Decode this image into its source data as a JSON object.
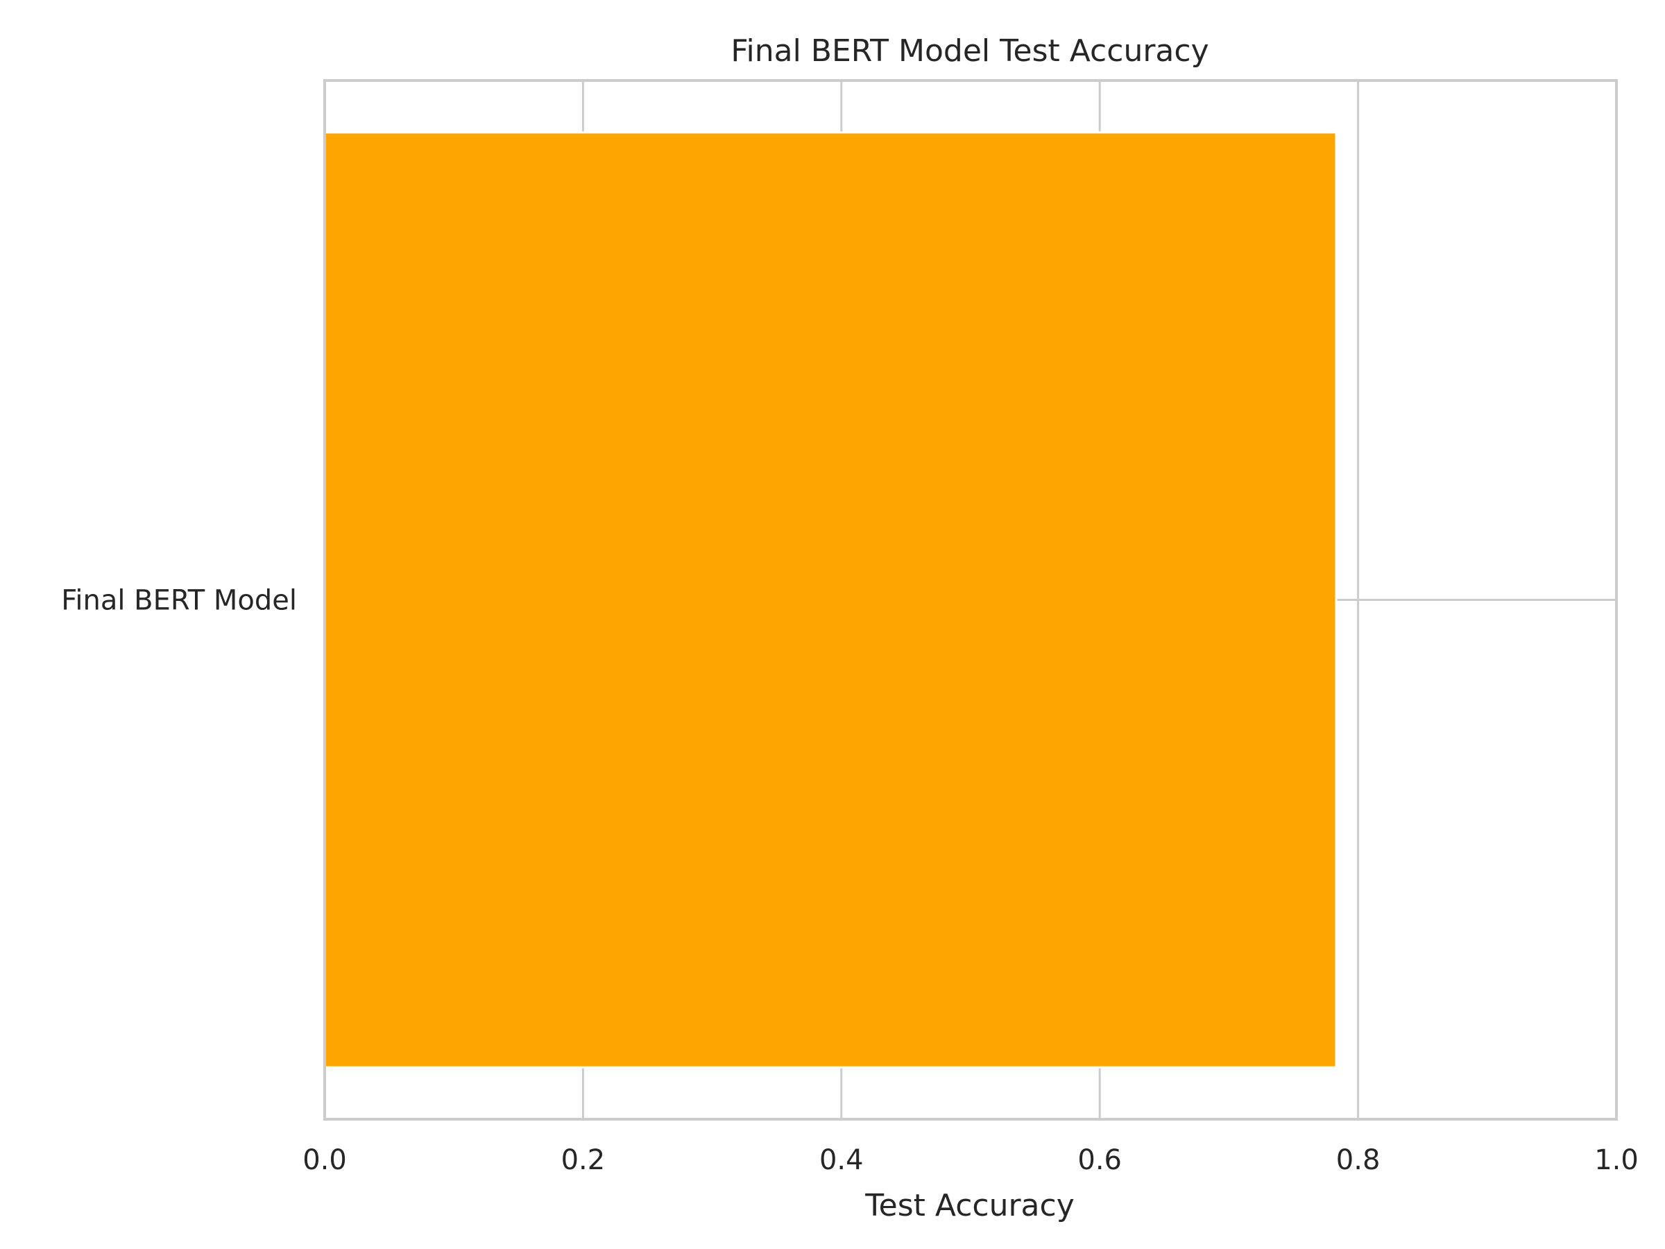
{
  "chart_data": {
    "type": "bar",
    "orientation": "horizontal",
    "title": "Final BERT Model Test Accuracy",
    "xlabel": "Test Accuracy",
    "ylabel": "",
    "categories": [
      "Final BERT Model"
    ],
    "values": [
      0.783
    ],
    "xlim": [
      0.0,
      1.0
    ],
    "xticks": [
      "0.0",
      "0.2",
      "0.4",
      "0.6",
      "0.8",
      "1.0"
    ],
    "xtick_values": [
      0.0,
      0.2,
      0.4,
      0.6,
      0.8,
      1.0
    ],
    "grid": true,
    "bar_color": "#FFA500",
    "grid_color": "#cccccc",
    "text_color": "#262626"
  }
}
